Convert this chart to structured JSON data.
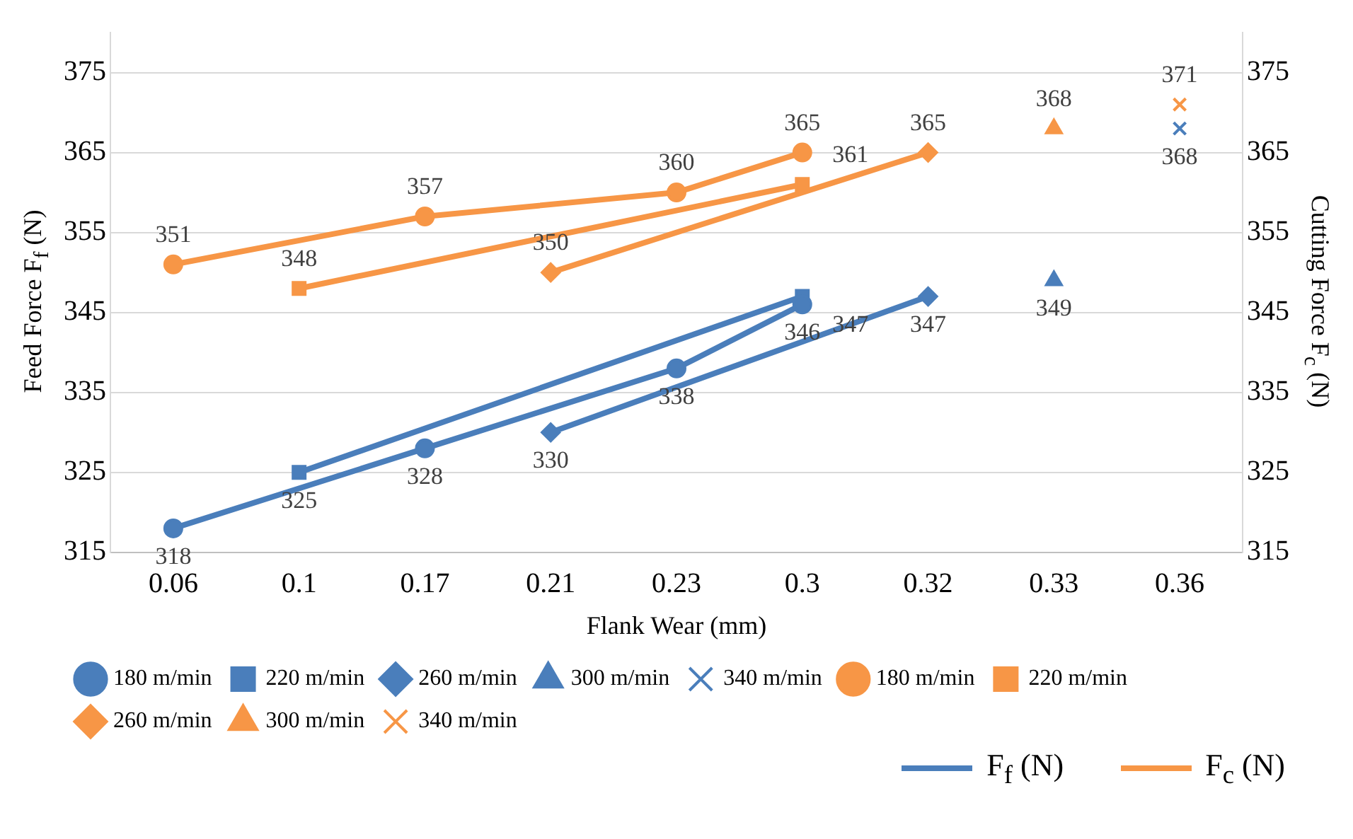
{
  "chart_data": {
    "type": "line",
    "xlabel": "Flank Wear (mm)",
    "ylabel": "Feed Force F$_{f}$ (N)",
    "y2label": "Cutting Force F$_{c}$ (N)",
    "categories": [
      "0.06",
      "0.1",
      "0.17",
      "0.21",
      "0.23",
      "0.3",
      "0.32",
      "0.33",
      "0.36"
    ],
    "series": [
      {
        "name": "180 m/min",
        "color": "#4a7ebb",
        "marker": "circle",
        "values": [
          318,
          null,
          328,
          null,
          338,
          346,
          null,
          null,
          null
        ]
      },
      {
        "name": "220 m/min",
        "color": "#4a7ebb",
        "marker": "square",
        "values": [
          null,
          325,
          null,
          null,
          null,
          347,
          null,
          null,
          null
        ]
      },
      {
        "name": "260 m/min",
        "color": "#4a7ebb",
        "marker": "diamond",
        "values": [
          null,
          null,
          null,
          330,
          null,
          null,
          347,
          null,
          null
        ]
      },
      {
        "name": "300 m/min",
        "color": "#4a7ebb",
        "marker": "triangle",
        "values": [
          null,
          null,
          null,
          null,
          null,
          null,
          null,
          349,
          null
        ]
      },
      {
        "name": "340 m/min",
        "color": "#4a7ebb",
        "marker": "cross",
        "values": [
          null,
          null,
          null,
          null,
          null,
          null,
          null,
          null,
          368
        ]
      },
      {
        "name": "180 m/min",
        "color": "#f79646",
        "marker": "circle",
        "axis": "y2",
        "values": [
          351,
          null,
          357,
          null,
          360,
          365,
          null,
          null,
          null
        ]
      },
      {
        "name": "220 m/min",
        "color": "#f79646",
        "marker": "square",
        "axis": "y2",
        "values": [
          null,
          348,
          null,
          null,
          null,
          361,
          null,
          null,
          null
        ]
      },
      {
        "name": "260 m/min",
        "color": "#f79646",
        "marker": "diamond",
        "axis": "y2",
        "values": [
          null,
          null,
          null,
          350,
          null,
          null,
          365,
          null,
          null
        ]
      },
      {
        "name": "300 m/min",
        "color": "#f79646",
        "marker": "triangle",
        "axis": "y2",
        "values": [
          null,
          null,
          null,
          null,
          null,
          null,
          null,
          368,
          null
        ]
      },
      {
        "name": "340 m/min",
        "color": "#f79646",
        "marker": "cross",
        "axis": "y2",
        "values": [
          null,
          null,
          null,
          null,
          null,
          null,
          null,
          null,
          371
        ]
      }
    ],
    "ylim": [
      315,
      380
    ],
    "yticks": [
      315,
      325,
      335,
      345,
      355,
      365,
      375
    ],
    "y2lim": [
      315,
      380
    ],
    "y2ticks": [
      315,
      325,
      335,
      345,
      355,
      365,
      375
    ],
    "grid": "y",
    "legend": "bottom",
    "data_labels": true,
    "line_style": "solid",
    "annotations": [
      "F$_{f}$ (N)",
      "F$_{c}$ (N)"
    ]
  }
}
